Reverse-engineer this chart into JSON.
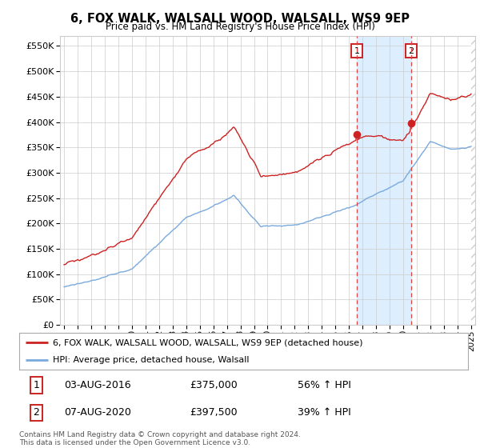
{
  "title": "6, FOX WALK, WALSALL WOOD, WALSALL, WS9 9EP",
  "subtitle": "Price paid vs. HM Land Registry's House Price Index (HPI)",
  "legend_line1": "6, FOX WALK, WALSALL WOOD, WALSALL, WS9 9EP (detached house)",
  "legend_line2": "HPI: Average price, detached house, Walsall",
  "footer": "Contains HM Land Registry data © Crown copyright and database right 2024.\nThis data is licensed under the Open Government Licence v3.0.",
  "point1_date": "03-AUG-2016",
  "point1_price": "£375,000",
  "point1_pct": "56% ↑ HPI",
  "point1_year": 2016.58,
  "point1_value": 375000,
  "point2_date": "07-AUG-2020",
  "point2_price": "£397,500",
  "point2_pct": "39% ↑ HPI",
  "point2_year": 2020.58,
  "point2_value": 397500,
  "red_color": "#cc2222",
  "blue_color": "#7aaadd",
  "dashed_color": "#dd4444",
  "shade_color": "#ddeeff",
  "grid_color": "#cccccc",
  "bg_color": "#ffffff",
  "ylim": [
    0,
    570000
  ],
  "xlim": [
    1994.7,
    2025.3
  ]
}
